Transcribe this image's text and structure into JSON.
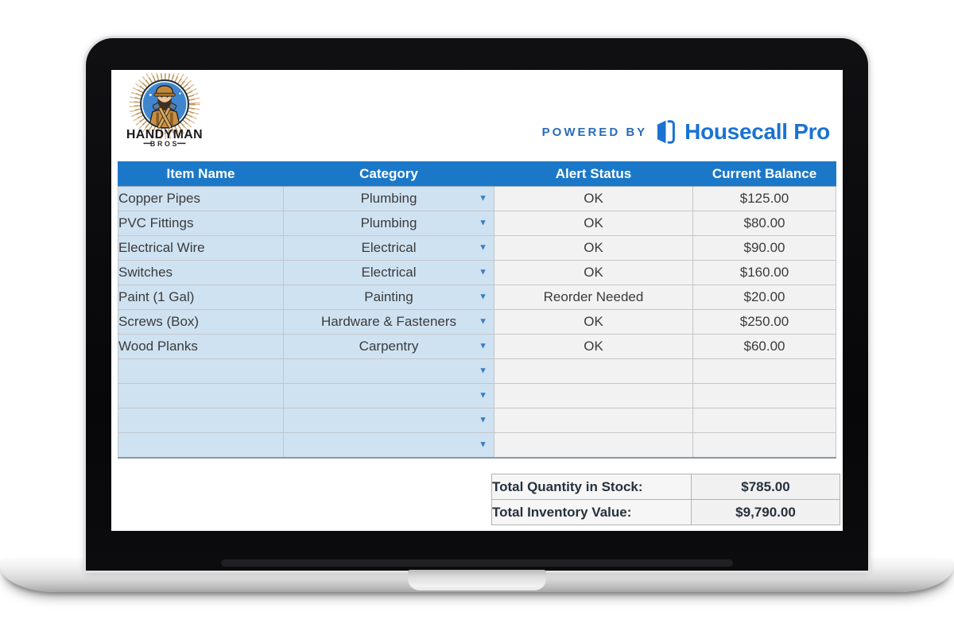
{
  "logo": {
    "line1": "HANDYMAN",
    "line2": "BROS"
  },
  "header": {
    "powered_by": "POWERED BY",
    "brand": "Housecall Pro"
  },
  "table": {
    "columns": [
      "Item Name",
      "Category",
      "Alert Status",
      "Current Balance"
    ],
    "rows": [
      {
        "item": "Copper Pipes",
        "category": "Plumbing",
        "alert": "OK",
        "balance": "$125.00"
      },
      {
        "item": "PVC Fittings",
        "category": "Plumbing",
        "alert": "OK",
        "balance": "$80.00"
      },
      {
        "item": "Electrical Wire",
        "category": "Electrical",
        "alert": "OK",
        "balance": "$90.00"
      },
      {
        "item": "Switches",
        "category": "Electrical",
        "alert": "OK",
        "balance": "$160.00"
      },
      {
        "item": "Paint (1 Gal)",
        "category": "Painting",
        "alert": "Reorder Needed",
        "balance": "$20.00"
      },
      {
        "item": "Screws (Box)",
        "category": "Hardware & Fasteners",
        "alert": "OK",
        "balance": "$250.00"
      },
      {
        "item": "Wood Planks",
        "category": "Carpentry",
        "alert": "OK",
        "balance": "$60.00"
      },
      {
        "item": "",
        "category": "",
        "alert": "",
        "balance": ""
      },
      {
        "item": "",
        "category": "",
        "alert": "",
        "balance": ""
      },
      {
        "item": "",
        "category": "",
        "alert": "",
        "balance": ""
      },
      {
        "item": "",
        "category": "",
        "alert": "",
        "balance": ""
      }
    ]
  },
  "totals": [
    {
      "label": "Total Quantity in Stock:",
      "value": "$785.00"
    },
    {
      "label": "Total Inventory Value:",
      "value": "$9,790.00"
    }
  ],
  "icons": {
    "logo": "handyman-bros-emblem",
    "brand": "housecall-pro-door-icon",
    "dropdown": "dropdown-arrow-icon"
  },
  "colors": {
    "header_blue": "#1b78c8",
    "cell_blue": "#cfe2f2",
    "cell_gray": "#f2f2f2",
    "brand_blue": "#1a73d1",
    "powered_by_blue": "#2b6cb4",
    "dropdown_blue": "#3b7dc4",
    "totals_text": "#25313e"
  }
}
